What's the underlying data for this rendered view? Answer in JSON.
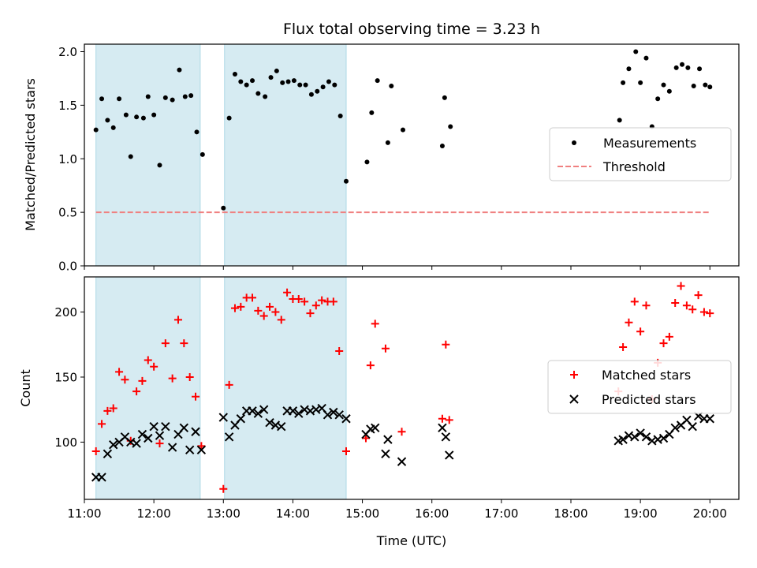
{
  "title": "Flux total observing time = 3.23 h",
  "colors": {
    "shade": "#add8e6",
    "threshold": "#f08080",
    "matched": "#ff0000",
    "predicted": "#000000",
    "measurement": "#000000"
  },
  "chart_data": [
    {
      "type": "scatter",
      "ylabel": "Matched/Predicted stars",
      "xlim": [
        "11:00",
        "20:25"
      ],
      "ylim": [
        0,
        2.07
      ],
      "yticks": [
        "0.0",
        "0.5",
        "1.0",
        "1.5",
        "2.0"
      ],
      "legend_position": "right",
      "shaded_intervals": [
        [
          "11:10",
          "12:40"
        ],
        [
          "13:01",
          "14:46"
        ]
      ],
      "threshold": {
        "name": "Threshold",
        "value": 0.5,
        "x_range": [
          "11:10",
          "20:00"
        ]
      },
      "series": [
        {
          "name": "Measurements",
          "points": [
            [
              "11:10",
              1.27
            ],
            [
              "11:15",
              1.56
            ],
            [
              "11:20",
              1.36
            ],
            [
              "11:25",
              1.29
            ],
            [
              "11:30",
              1.56
            ],
            [
              "11:36",
              1.41
            ],
            [
              "11:40",
              1.02
            ],
            [
              "11:45",
              1.39
            ],
            [
              "11:51",
              1.38
            ],
            [
              "11:55",
              1.58
            ],
            [
              "12:00",
              1.41
            ],
            [
              "12:05",
              0.94
            ],
            [
              "12:10",
              1.57
            ],
            [
              "12:16",
              1.55
            ],
            [
              "12:22",
              1.83
            ],
            [
              "12:27",
              1.58
            ],
            [
              "12:32",
              1.59
            ],
            [
              "12:37",
              1.25
            ],
            [
              "12:42",
              1.04
            ],
            [
              "13:00",
              0.54
            ],
            [
              "13:05",
              1.38
            ],
            [
              "13:10",
              1.79
            ],
            [
              "13:15",
              1.72
            ],
            [
              "13:20",
              1.69
            ],
            [
              "13:25",
              1.73
            ],
            [
              "13:30",
              1.61
            ],
            [
              "13:36",
              1.58
            ],
            [
              "13:41",
              1.76
            ],
            [
              "13:46",
              1.82
            ],
            [
              "13:51",
              1.71
            ],
            [
              "13:56",
              1.72
            ],
            [
              "14:01",
              1.73
            ],
            [
              "14:06",
              1.69
            ],
            [
              "14:11",
              1.69
            ],
            [
              "14:16",
              1.6
            ],
            [
              "14:21",
              1.63
            ],
            [
              "14:26",
              1.67
            ],
            [
              "14:31",
              1.72
            ],
            [
              "14:36",
              1.69
            ],
            [
              "14:41",
              1.4
            ],
            [
              "14:46",
              0.79
            ],
            [
              "15:04",
              0.97
            ],
            [
              "15:08",
              1.43
            ],
            [
              "15:13",
              1.73
            ],
            [
              "15:22",
              1.15
            ],
            [
              "15:25",
              1.68
            ],
            [
              "15:35",
              1.27
            ],
            [
              "16:09",
              1.12
            ],
            [
              "16:11",
              1.57
            ],
            [
              "16:16",
              1.3
            ],
            [
              "18:42",
              1.36
            ],
            [
              "18:45",
              1.71
            ],
            [
              "18:50",
              1.84
            ],
            [
              "18:56",
              2.0
            ],
            [
              "19:00",
              1.71
            ],
            [
              "19:05",
              1.94
            ],
            [
              "19:10",
              1.3
            ],
            [
              "19:15",
              1.56
            ],
            [
              "19:20",
              1.69
            ],
            [
              "19:25",
              1.63
            ],
            [
              "19:31",
              1.85
            ],
            [
              "19:36",
              1.88
            ],
            [
              "19:41",
              1.85
            ],
            [
              "19:46",
              1.68
            ],
            [
              "19:51",
              1.84
            ],
            [
              "19:56",
              1.69
            ],
            [
              "20:00",
              1.67
            ]
          ]
        }
      ]
    },
    {
      "type": "scatter",
      "xlabel": "Time (UTC)",
      "ylabel": "Count",
      "xlim": [
        "11:00",
        "20:25"
      ],
      "ylim": [
        56,
        227
      ],
      "yticks": [
        "100",
        "150",
        "200"
      ],
      "xticks": [
        "11:00",
        "12:00",
        "13:00",
        "14:00",
        "15:00",
        "16:00",
        "17:00",
        "18:00",
        "19:00",
        "20:00"
      ],
      "legend_position": "right",
      "shaded_intervals": [
        [
          "11:10",
          "12:40"
        ],
        [
          "13:01",
          "14:46"
        ]
      ],
      "series": [
        {
          "name": "Matched stars",
          "marker": "+",
          "points": [
            [
              "11:10",
              93
            ],
            [
              "11:15",
              114
            ],
            [
              "11:20",
              124
            ],
            [
              "11:25",
              126
            ],
            [
              "11:30",
              154
            ],
            [
              "11:35",
              148
            ],
            [
              "11:40",
              101
            ],
            [
              "11:45",
              139
            ],
            [
              "11:50",
              147
            ],
            [
              "11:55",
              163
            ],
            [
              "12:00",
              158
            ],
            [
              "12:05",
              99
            ],
            [
              "12:10",
              176
            ],
            [
              "12:16",
              149
            ],
            [
              "12:21",
              194
            ],
            [
              "12:26",
              176
            ],
            [
              "12:31",
              150
            ],
            [
              "12:36",
              135
            ],
            [
              "12:41",
              97
            ],
            [
              "13:00",
              64
            ],
            [
              "13:05",
              144
            ],
            [
              "13:10",
              203
            ],
            [
              "13:15",
              204
            ],
            [
              "13:20",
              211
            ],
            [
              "13:25",
              211
            ],
            [
              "13:30",
              201
            ],
            [
              "13:35",
              197
            ],
            [
              "13:40",
              204
            ],
            [
              "13:45",
              200
            ],
            [
              "13:50",
              194
            ],
            [
              "13:55",
              215
            ],
            [
              "14:00",
              210
            ],
            [
              "14:05",
              210
            ],
            [
              "14:10",
              208
            ],
            [
              "14:15",
              199
            ],
            [
              "14:20",
              205
            ],
            [
              "14:25",
              209
            ],
            [
              "14:30",
              208
            ],
            [
              "14:35",
              208
            ],
            [
              "14:40",
              170
            ],
            [
              "14:46",
              93
            ],
            [
              "15:03",
              103
            ],
            [
              "15:07",
              159
            ],
            [
              "15:11",
              191
            ],
            [
              "15:20",
              172
            ],
            [
              "15:34",
              108
            ],
            [
              "16:09",
              118
            ],
            [
              "16:12",
              175
            ],
            [
              "16:15",
              117
            ],
            [
              "18:41",
              139
            ],
            [
              "18:45",
              173
            ],
            [
              "18:50",
              192
            ],
            [
              "18:55",
              208
            ],
            [
              "19:00",
              185
            ],
            [
              "19:05",
              205
            ],
            [
              "19:10",
              133
            ],
            [
              "19:15",
              161
            ],
            [
              "19:20",
              176
            ],
            [
              "19:25",
              181
            ],
            [
              "19:30",
              207
            ],
            [
              "19:35",
              220
            ],
            [
              "19:40",
              205
            ],
            [
              "19:45",
              202
            ],
            [
              "19:50",
              213
            ],
            [
              "19:55",
              200
            ],
            [
              "20:00",
              199
            ]
          ]
        },
        {
          "name": "Predicted stars",
          "marker": "x",
          "points": [
            [
              "11:10",
              73
            ],
            [
              "11:15",
              73
            ],
            [
              "11:20",
              91
            ],
            [
              "11:25",
              98
            ],
            [
              "11:30",
              100
            ],
            [
              "11:35",
              104
            ],
            [
              "11:40",
              100
            ],
            [
              "11:45",
              99
            ],
            [
              "11:50",
              106
            ],
            [
              "11:55",
              103
            ],
            [
              "12:00",
              112
            ],
            [
              "12:05",
              105
            ],
            [
              "12:10",
              112
            ],
            [
              "12:16",
              96
            ],
            [
              "12:21",
              106
            ],
            [
              "12:26",
              111
            ],
            [
              "12:31",
              94
            ],
            [
              "12:36",
              108
            ],
            [
              "12:41",
              94
            ],
            [
              "13:00",
              119
            ],
            [
              "13:05",
              104
            ],
            [
              "13:10",
              113
            ],
            [
              "13:15",
              118
            ],
            [
              "13:20",
              124
            ],
            [
              "13:25",
              124
            ],
            [
              "13:30",
              122
            ],
            [
              "13:35",
              125
            ],
            [
              "13:40",
              115
            ],
            [
              "13:45",
              113
            ],
            [
              "13:50",
              112
            ],
            [
              "13:55",
              124
            ],
            [
              "14:00",
              124
            ],
            [
              "14:05",
              122
            ],
            [
              "14:10",
              125
            ],
            [
              "14:15",
              124
            ],
            [
              "14:20",
              125
            ],
            [
              "14:25",
              126
            ],
            [
              "14:30",
              121
            ],
            [
              "14:35",
              123
            ],
            [
              "14:40",
              121
            ],
            [
              "14:46",
              118
            ],
            [
              "15:03",
              106
            ],
            [
              "15:07",
              110
            ],
            [
              "15:11",
              111
            ],
            [
              "15:20",
              91
            ],
            [
              "15:22",
              102
            ],
            [
              "15:34",
              85
            ],
            [
              "16:09",
              111
            ],
            [
              "16:12",
              104
            ],
            [
              "16:15",
              90
            ],
            [
              "18:41",
              101
            ],
            [
              "18:45",
              102
            ],
            [
              "18:50",
              105
            ],
            [
              "18:55",
              104
            ],
            [
              "19:00",
              107
            ],
            [
              "19:05",
              104
            ],
            [
              "19:10",
              101
            ],
            [
              "19:15",
              102
            ],
            [
              "19:20",
              103
            ],
            [
              "19:25",
              106
            ],
            [
              "19:30",
              111
            ],
            [
              "19:35",
              113
            ],
            [
              "19:40",
              117
            ],
            [
              "19:45",
              112
            ],
            [
              "19:50",
              120
            ],
            [
              "19:55",
              118
            ],
            [
              "20:00",
              118
            ]
          ]
        }
      ]
    }
  ]
}
